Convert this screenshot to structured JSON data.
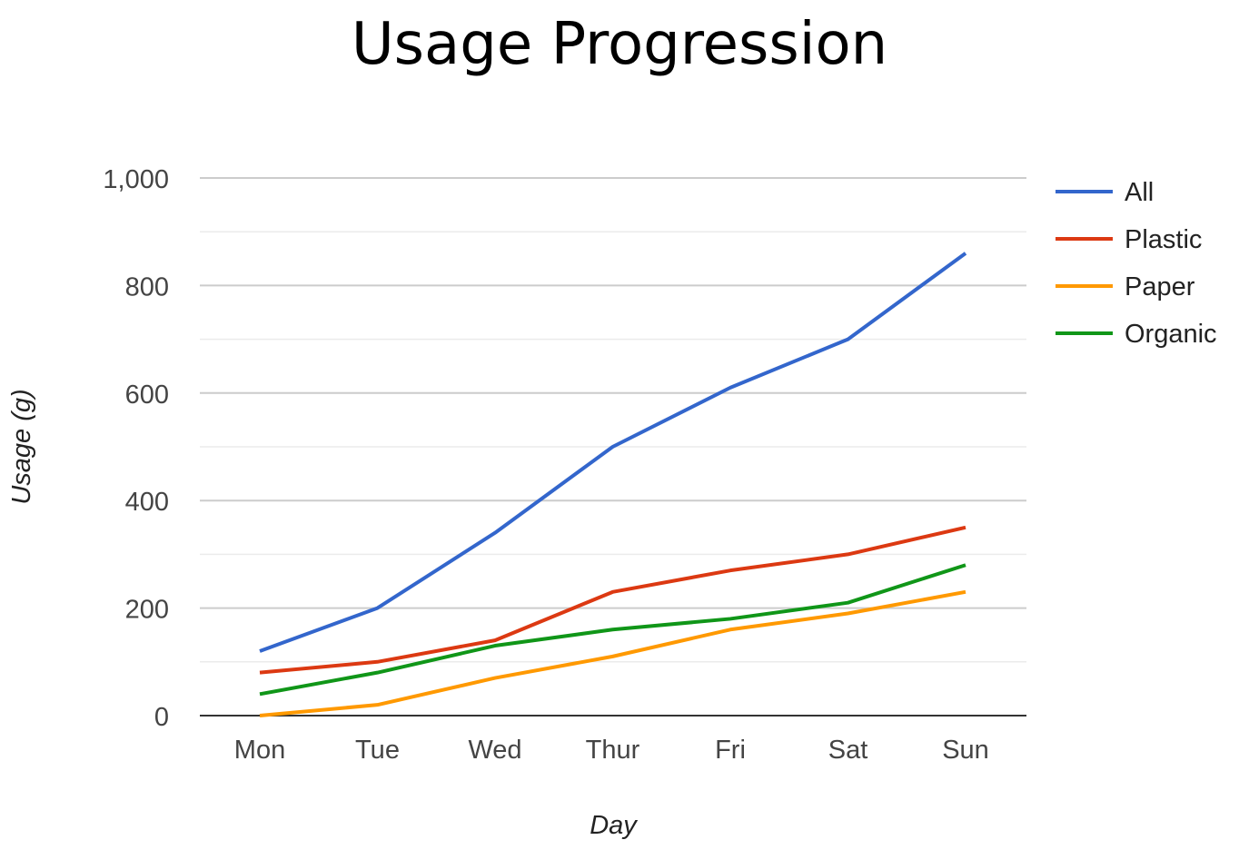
{
  "chart_data": {
    "type": "line",
    "title": "Usage Progression",
    "xlabel": "Day",
    "ylabel": "Usage (g)",
    "categories": [
      "Mon",
      "Tue",
      "Wed",
      "Thur",
      "Fri",
      "Sat",
      "Sun"
    ],
    "ylim": [
      0,
      1000
    ],
    "yticks": [
      0,
      200,
      400,
      600,
      800,
      1000
    ],
    "ytick_labels": [
      "0",
      "200",
      "400",
      "600",
      "800",
      "1,000"
    ],
    "minor_gridlines": [
      100,
      300,
      500,
      700,
      900
    ],
    "grid": true,
    "legend_position": "right",
    "series": [
      {
        "name": "All",
        "color": "#3366cc",
        "values": [
          120,
          200,
          340,
          500,
          610,
          700,
          860
        ]
      },
      {
        "name": "Plastic",
        "color": "#dc3912",
        "values": [
          80,
          100,
          140,
          230,
          270,
          300,
          350
        ]
      },
      {
        "name": "Paper",
        "color": "#ff9900",
        "values": [
          0,
          20,
          70,
          110,
          160,
          190,
          230
        ]
      },
      {
        "name": "Organic",
        "color": "#109618",
        "values": [
          40,
          80,
          130,
          160,
          180,
          210,
          280
        ]
      }
    ]
  }
}
